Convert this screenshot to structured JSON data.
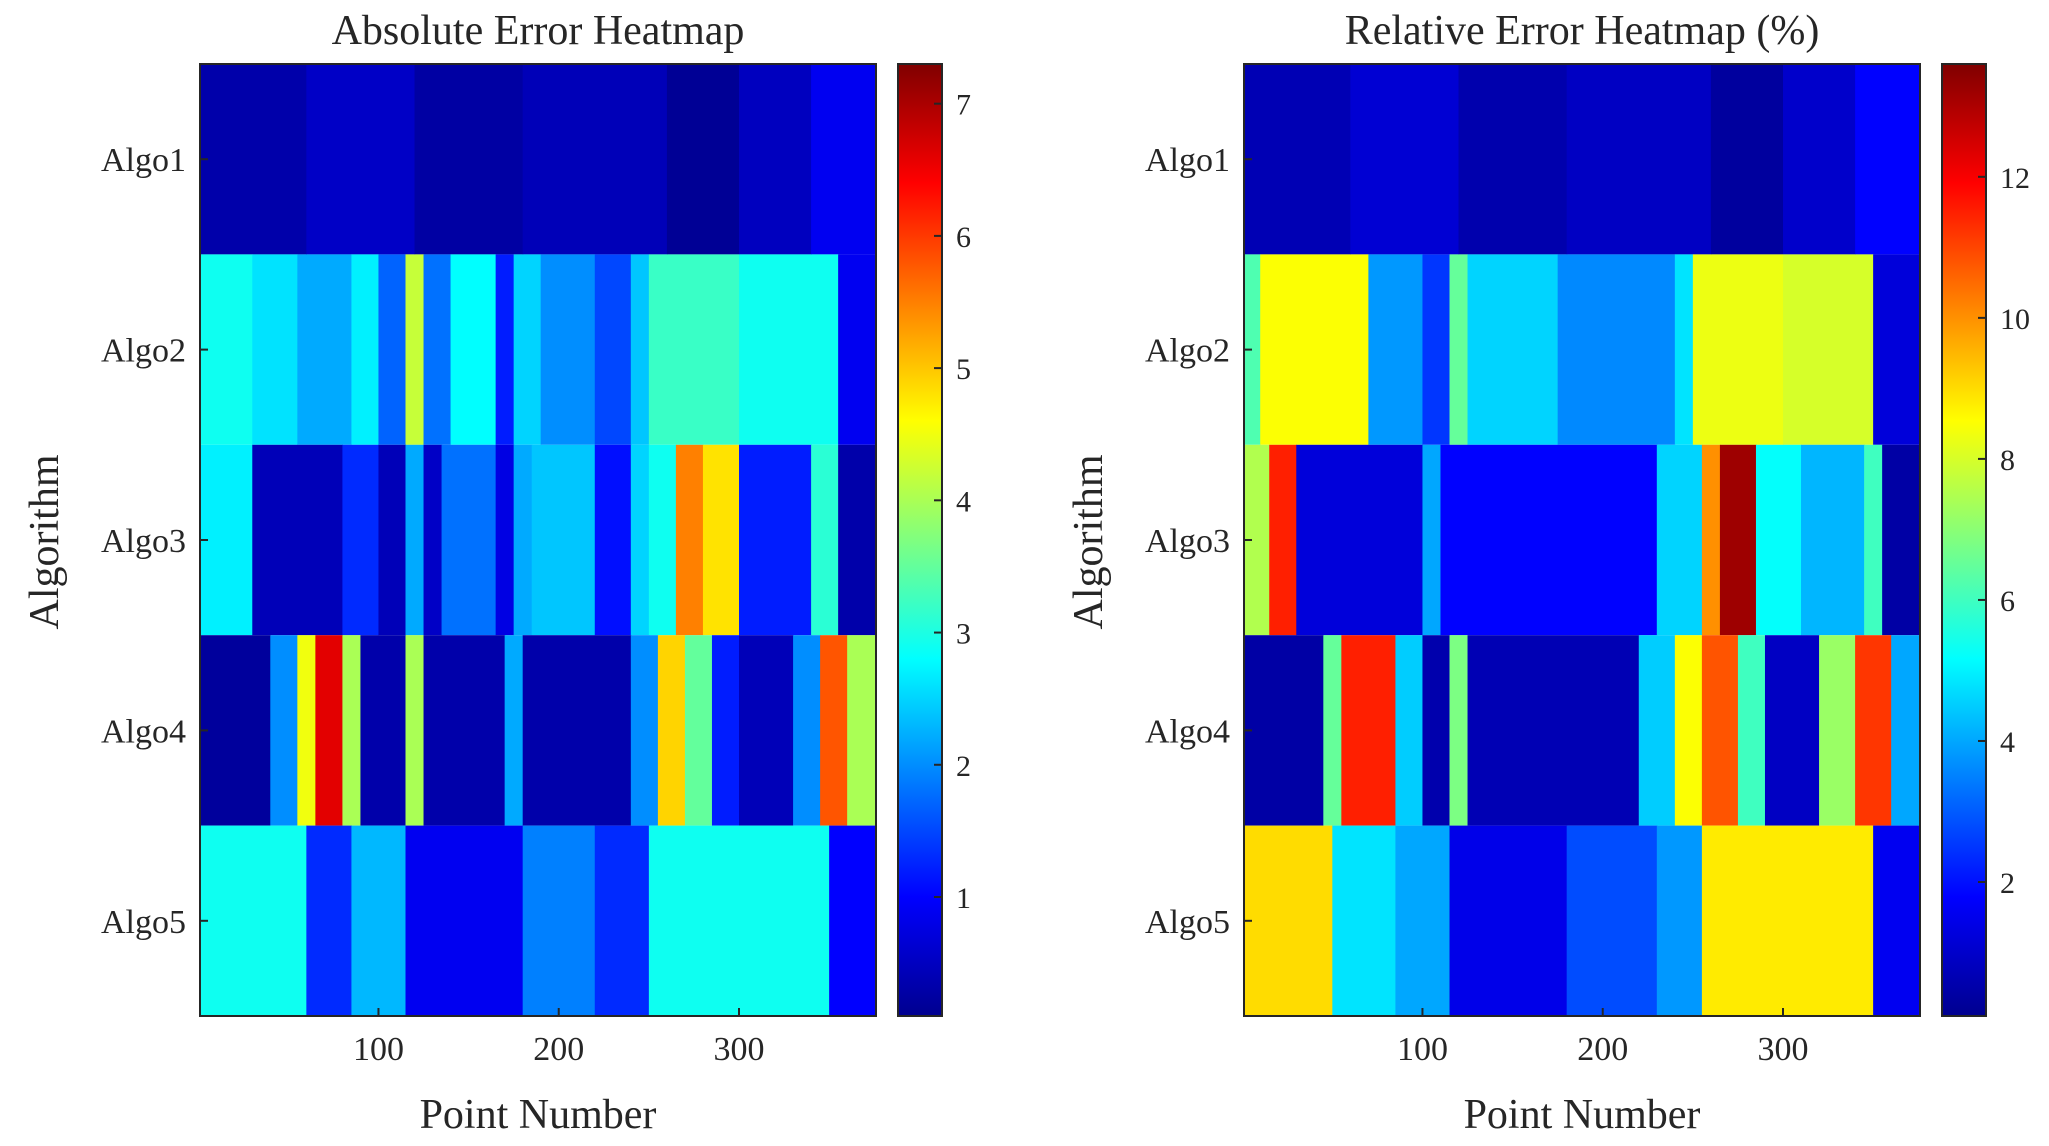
{
  "chart_data": [
    {
      "type": "heatmap",
      "title": "Absolute Error Heatmap",
      "xlabel": "Point Number",
      "ylabel": "Algorithm",
      "rows": [
        "Algo1",
        "Algo2",
        "Algo3",
        "Algo4",
        "Algo5"
      ],
      "xlim": [
        1,
        376
      ],
      "xticks": [
        100,
        200,
        300
      ],
      "colormap": "jet",
      "clim": [
        0.1,
        7.3
      ],
      "colorbar_ticks": [
        1,
        2,
        3,
        4,
        5,
        6,
        7
      ],
      "bands": [
        [
          [
            1,
            60,
            0.4
          ],
          [
            60,
            120,
            0.6
          ],
          [
            120,
            180,
            0.35
          ],
          [
            180,
            260,
            0.5
          ],
          [
            260,
            300,
            0.25
          ],
          [
            300,
            340,
            0.55
          ],
          [
            340,
            376,
            0.9
          ]
        ],
        [
          [
            1,
            30,
            2.9
          ],
          [
            30,
            55,
            2.6
          ],
          [
            55,
            85,
            2.2
          ],
          [
            85,
            100,
            2.7
          ],
          [
            100,
            115,
            1.7
          ],
          [
            115,
            125,
            4.2
          ],
          [
            125,
            140,
            1.8
          ],
          [
            140,
            165,
            2.8
          ],
          [
            165,
            175,
            1.2
          ],
          [
            175,
            190,
            2.5
          ],
          [
            190,
            220,
            2.0
          ],
          [
            220,
            240,
            1.5
          ],
          [
            240,
            250,
            2.4
          ],
          [
            250,
            300,
            3.2
          ],
          [
            300,
            355,
            2.9
          ],
          [
            355,
            376,
            0.9
          ]
        ],
        [
          [
            1,
            30,
            2.7
          ],
          [
            30,
            80,
            0.5
          ],
          [
            80,
            100,
            1.3
          ],
          [
            100,
            115,
            0.5
          ],
          [
            115,
            125,
            2.2
          ],
          [
            125,
            135,
            0.6
          ],
          [
            135,
            165,
            1.8
          ],
          [
            165,
            175,
            0.8
          ],
          [
            175,
            185,
            2.2
          ],
          [
            185,
            220,
            2.4
          ],
          [
            220,
            240,
            1.1
          ],
          [
            240,
            250,
            2.5
          ],
          [
            250,
            265,
            2.9
          ],
          [
            265,
            280,
            5.5
          ],
          [
            280,
            300,
            4.8
          ],
          [
            300,
            340,
            1.2
          ],
          [
            340,
            355,
            3.1
          ],
          [
            355,
            376,
            0.4
          ]
        ],
        [
          [
            1,
            40,
            0.3
          ],
          [
            40,
            55,
            2.0
          ],
          [
            55,
            65,
            4.5
          ],
          [
            65,
            80,
            6.6
          ],
          [
            80,
            90,
            4.0
          ],
          [
            90,
            115,
            0.4
          ],
          [
            115,
            125,
            4.0
          ],
          [
            125,
            170,
            0.4
          ],
          [
            170,
            180,
            2.2
          ],
          [
            180,
            240,
            0.4
          ],
          [
            240,
            255,
            2.0
          ],
          [
            255,
            270,
            4.9
          ],
          [
            270,
            285,
            3.5
          ],
          [
            285,
            300,
            1.2
          ],
          [
            300,
            330,
            0.5
          ],
          [
            330,
            345,
            2.0
          ],
          [
            345,
            360,
            5.8
          ],
          [
            360,
            376,
            4.0
          ]
        ],
        [
          [
            1,
            60,
            2.9
          ],
          [
            60,
            85,
            1.3
          ],
          [
            85,
            115,
            2.3
          ],
          [
            115,
            180,
            0.9
          ],
          [
            180,
            220,
            1.9
          ],
          [
            220,
            250,
            1.3
          ],
          [
            250,
            350,
            2.9
          ],
          [
            350,
            376,
            1.0
          ]
        ]
      ]
    },
    {
      "type": "heatmap",
      "title": "Relative Error Heatmap (%)",
      "xlabel": "Point Number",
      "ylabel": "Algorithm",
      "rows": [
        "Algo1",
        "Algo2",
        "Algo3",
        "Algo4",
        "Algo5"
      ],
      "xlim": [
        1,
        376
      ],
      "xticks": [
        100,
        200,
        300
      ],
      "colormap": "jet",
      "clim": [
        0.1,
        13.6
      ],
      "colorbar_ticks": [
        2,
        4,
        6,
        8,
        10,
        12
      ],
      "bands": [
        [
          [
            1,
            60,
            0.8
          ],
          [
            60,
            120,
            1.2
          ],
          [
            120,
            180,
            0.7
          ],
          [
            180,
            260,
            1.0
          ],
          [
            260,
            300,
            0.5
          ],
          [
            300,
            340,
            1.1
          ],
          [
            340,
            376,
            1.8
          ]
        ],
        [
          [
            1,
            10,
            6.2
          ],
          [
            10,
            70,
            8.5
          ],
          [
            70,
            100,
            3.8
          ],
          [
            100,
            115,
            2.5
          ],
          [
            115,
            125,
            6.5
          ],
          [
            125,
            175,
            4.6
          ],
          [
            175,
            240,
            3.6
          ],
          [
            240,
            250,
            4.8
          ],
          [
            250,
            300,
            8.3
          ],
          [
            300,
            350,
            8.0
          ],
          [
            350,
            376,
            1.3
          ]
        ],
        [
          [
            1,
            15,
            7.5
          ],
          [
            15,
            30,
            11.5
          ],
          [
            30,
            100,
            1.3
          ],
          [
            100,
            110,
            4.0
          ],
          [
            110,
            230,
            1.8
          ],
          [
            230,
            255,
            4.6
          ],
          [
            255,
            265,
            10.0
          ],
          [
            265,
            285,
            13.2
          ],
          [
            285,
            310,
            5.2
          ],
          [
            310,
            345,
            4.2
          ],
          [
            345,
            355,
            6.0
          ],
          [
            355,
            376,
            0.6
          ]
        ],
        [
          [
            1,
            45,
            0.6
          ],
          [
            45,
            55,
            6.5
          ],
          [
            55,
            85,
            11.5
          ],
          [
            85,
            100,
            4.5
          ],
          [
            100,
            115,
            0.7
          ],
          [
            115,
            125,
            6.8
          ],
          [
            125,
            220,
            0.8
          ],
          [
            220,
            240,
            4.5
          ],
          [
            240,
            255,
            8.5
          ],
          [
            255,
            275,
            10.8
          ],
          [
            275,
            290,
            6.0
          ],
          [
            290,
            320,
            1.0
          ],
          [
            320,
            340,
            7.2
          ],
          [
            340,
            360,
            11.2
          ],
          [
            360,
            376,
            4.0
          ]
        ],
        [
          [
            1,
            50,
            9.0
          ],
          [
            50,
            85,
            4.8
          ],
          [
            85,
            115,
            4.0
          ],
          [
            115,
            180,
            1.5
          ],
          [
            180,
            230,
            2.8
          ],
          [
            230,
            255,
            3.8
          ],
          [
            255,
            350,
            8.8
          ],
          [
            350,
            376,
            1.6
          ]
        ]
      ]
    }
  ]
}
